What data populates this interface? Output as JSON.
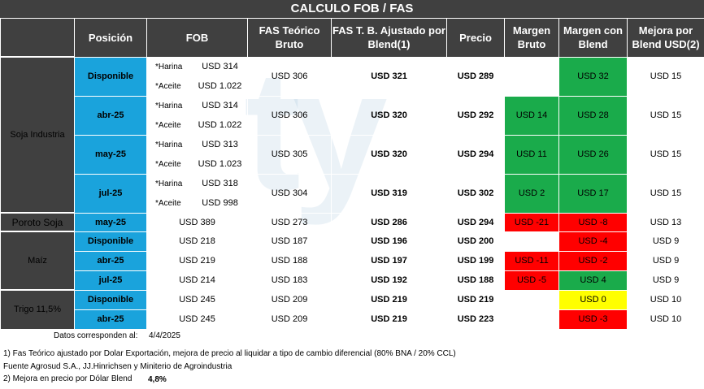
{
  "title": "CALCULO FOB / FAS",
  "headers": {
    "posicion": "Posición",
    "fob": "FOB",
    "fas_teorico": "FAS Teórico Bruto",
    "fas_ajustado": "FAS T. B. Ajustado por Blend(1)",
    "precio": "Precio",
    "margen_bruto": "Margen Bruto",
    "margen_blend": "Margen con Blend",
    "mejora": "Mejora por Blend USD(2)"
  },
  "watermark": "ty",
  "groups": {
    "soja": "Soja Industria",
    "poroto": "Poroto Soja",
    "maiz": "Maíz",
    "trigo": "Trigo 11,5%"
  },
  "soja_rows": [
    {
      "pos": "Disponible",
      "l1": "*Harina",
      "v1": "USD 314",
      "l2": "*Aceite",
      "v2": "USD 1.022",
      "fas": "USD 306",
      "adj": "USD 321",
      "precio": "USD 289",
      "mb": "",
      "mcb": "USD 32",
      "mej": "USD 15"
    },
    {
      "pos": "abr-25",
      "l1": "*Harina",
      "v1": "USD 314",
      "l2": "*Aceite",
      "v2": "USD 1.022",
      "fas": "USD 306",
      "adj": "USD 320",
      "precio": "USD 292",
      "mb": "USD 14",
      "mcb": "USD 28",
      "mej": "USD 15"
    },
    {
      "pos": "may-25",
      "l1": "*Harina",
      "v1": "USD 313",
      "l2": "*Aceite",
      "v2": "USD 1.023",
      "fas": "USD 305",
      "adj": "USD 320",
      "precio": "USD 294",
      "mb": "USD 11",
      "mcb": "USD 26",
      "mej": "USD 15"
    },
    {
      "pos": "jul-25",
      "l1": "*Harina",
      "v1": "USD 318",
      "l2": "*Aceite",
      "v2": "USD 998",
      "fas": "USD 304",
      "adj": "USD 319",
      "precio": "USD 302",
      "mb": "USD 2",
      "mcb": "USD 17",
      "mej": "USD 15"
    }
  ],
  "poroto_row": {
    "pos": "may-25",
    "fob": "USD 389",
    "fas": "USD 273",
    "adj": "USD 286",
    "precio": "USD 294",
    "mb": "USD -21",
    "mcb": "USD -8",
    "mej": "USD 13"
  },
  "maiz_rows": [
    {
      "pos": "Disponible",
      "fob": "USD 218",
      "fas": "USD 187",
      "adj": "USD 196",
      "precio": "USD 200",
      "mb": "",
      "mcb": "USD -4",
      "mej": "USD 9"
    },
    {
      "pos": "abr-25",
      "fob": "USD 219",
      "fas": "USD 188",
      "adj": "USD 197",
      "precio": "USD 199",
      "mb": "USD -11",
      "mcb": "USD -2",
      "mej": "USD 9"
    },
    {
      "pos": "jul-25",
      "fob": "USD 214",
      "fas": "USD 183",
      "adj": "USD 192",
      "precio": "USD 188",
      "mb": "USD -5",
      "mcb": "USD 4",
      "mej": "USD 9"
    }
  ],
  "trigo_rows": [
    {
      "pos": "Disponible",
      "fob": "USD 245",
      "fas": "USD 209",
      "adj": "USD 219",
      "precio": "USD 219",
      "mb": "",
      "mcb": "USD 0",
      "mej": "USD 10"
    },
    {
      "pos": "abr-25",
      "fob": "USD 245",
      "fas": "USD 209",
      "adj": "USD 219",
      "precio": "USD 223",
      "mb": "",
      "mcb": "USD -3",
      "mej": "USD 10"
    }
  ],
  "notes": {
    "date_label": "Datos corresponden al:",
    "date_value": "4/4/2025",
    "note1": "1) Fas Teórico ajustado por Dolar Exportación, mejora de precio al liquidar a tipo de cambio diferencial (80% BNA / 20% CCL)",
    "source": "Fuente Agrosud S.A., JJ.Hinrichsen y Miniterio de Agroindustria",
    "note2": "2) Mejora en precio por Dólar Blend",
    "note2_value": "4,8%"
  },
  "colors": {
    "dark": "#404040",
    "blue": "#1aa3dc",
    "green": "#1aab4b",
    "red": "#ff0000",
    "yellow": "#ffff00"
  }
}
